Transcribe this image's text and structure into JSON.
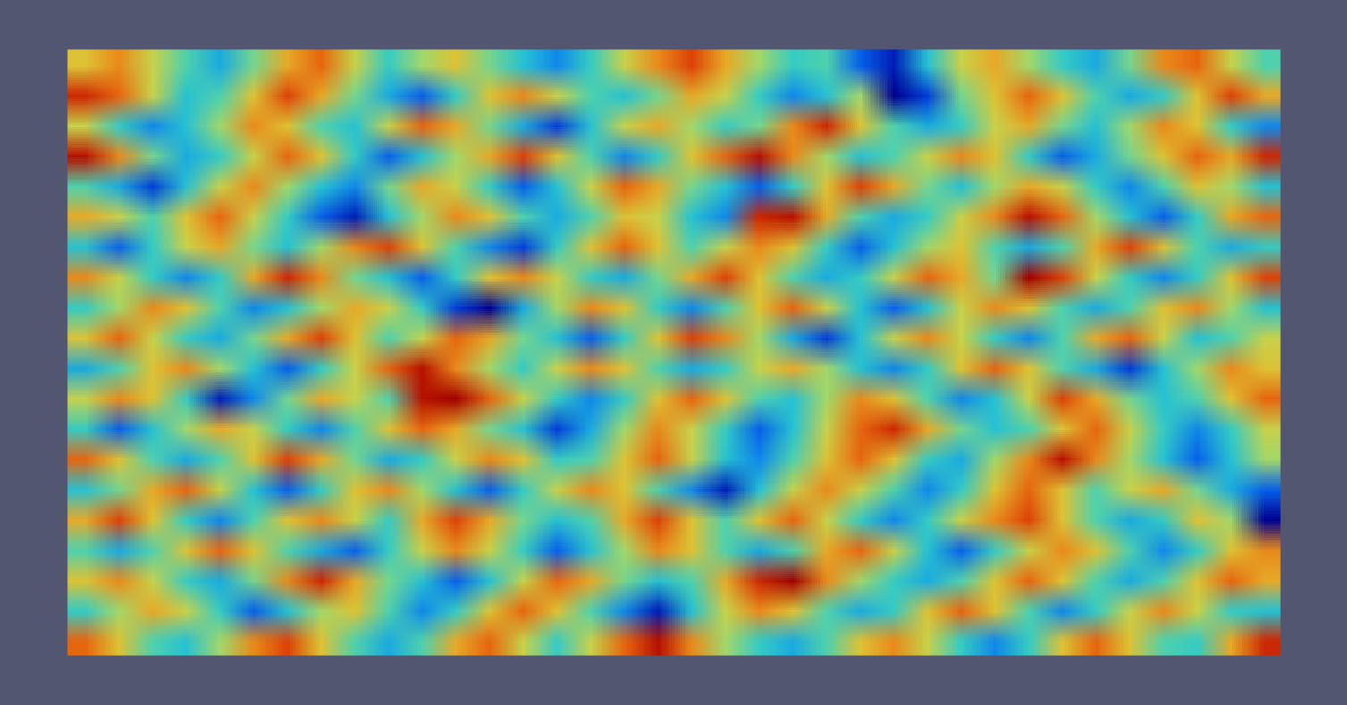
{
  "chart_data": {
    "type": "heatmap",
    "tick_labels": false,
    "cells": [
      [
        3,
        5,
        2,
        -1,
        -4,
        0,
        4,
        6,
        2,
        -2,
        1,
        3,
        0,
        -3,
        -5,
        -2,
        2,
        5,
        7,
        4,
        1,
        -2,
        -1,
        -6,
        -8,
        -3,
        2,
        4,
        1,
        -2,
        -4,
        0,
        5,
        6,
        2,
        -1
      ],
      [
        8,
        6,
        2,
        -3,
        -1,
        3,
        7,
        4,
        0,
        -4,
        -6,
        -2,
        3,
        5,
        2,
        -1,
        -3,
        0,
        4,
        2,
        -2,
        -5,
        -3,
        1,
        -9,
        -7,
        0,
        3,
        6,
        3,
        -1,
        -4,
        -2,
        3,
        7,
        4
      ],
      [
        2,
        -2,
        -5,
        -3,
        1,
        5,
        3,
        -1,
        -3,
        2,
        6,
        4,
        0,
        -4,
        -7,
        -3,
        2,
        4,
        1,
        -2,
        0,
        5,
        8,
        3,
        -1,
        -4,
        -2,
        2,
        4,
        0,
        -3,
        1,
        5,
        3,
        -2,
        -5
      ],
      [
        9,
        5,
        0,
        -4,
        -2,
        2,
        6,
        3,
        -2,
        -6,
        -3,
        1,
        4,
        7,
        3,
        -1,
        -5,
        -2,
        3,
        6,
        9,
        5,
        1,
        -3,
        -1,
        2,
        5,
        3,
        -2,
        -6,
        -4,
        0,
        3,
        6,
        4,
        8
      ],
      [
        -1,
        -4,
        -7,
        -3,
        2,
        5,
        1,
        -3,
        -5,
        0,
        4,
        2,
        -2,
        -6,
        -3,
        2,
        6,
        4,
        0,
        -3,
        -6,
        -2,
        3,
        7,
        4,
        0,
        -3,
        1,
        4,
        2,
        -2,
        -5,
        -1,
        3,
        1,
        -3
      ],
      [
        4,
        2,
        -1,
        3,
        6,
        2,
        -2,
        -6,
        -8,
        -3,
        1,
        5,
        3,
        -1,
        -4,
        -1,
        3,
        2,
        -3,
        -5,
        8,
        9,
        4,
        -1,
        -4,
        -2,
        2,
        5,
        9,
        6,
        1,
        -3,
        -6,
        -2,
        4,
        6
      ],
      [
        -3,
        -6,
        -2,
        2,
        4,
        0,
        -3,
        1,
        5,
        7,
        3,
        -1,
        -5,
        -7,
        -2,
        3,
        6,
        3,
        -1,
        2,
        5,
        3,
        -2,
        -6,
        -3,
        1,
        3,
        -1,
        -4,
        -1,
        4,
        7,
        3,
        -1,
        -4,
        -2
      ],
      [
        5,
        2,
        -2,
        -5,
        -2,
        4,
        8,
        5,
        0,
        -3,
        -6,
        -2,
        3,
        5,
        2,
        -2,
        -4,
        0,
        4,
        7,
        3,
        -1,
        -4,
        -2,
        2,
        6,
        4,
        0,
        10,
        7,
        2,
        -2,
        -5,
        -2,
        3,
        7
      ],
      [
        -2,
        1,
        5,
        3,
        -1,
        -5,
        -3,
        1,
        4,
        2,
        -2,
        -7,
        -9,
        -4,
        1,
        5,
        3,
        -2,
        -5,
        -1,
        3,
        6,
        2,
        -3,
        -6,
        -3,
        2,
        5,
        3,
        -1,
        -4,
        -1,
        3,
        5,
        1,
        -3
      ],
      [
        3,
        6,
        2,
        -2,
        -4,
        0,
        4,
        7,
        3,
        -1,
        2,
        6,
        4,
        0,
        -3,
        -6,
        -2,
        3,
        7,
        5,
        1,
        -4,
        -7,
        -3,
        2,
        5,
        2,
        -2,
        -5,
        -1,
        4,
        6,
        2,
        -3,
        -1,
        2
      ],
      [
        -4,
        -1,
        3,
        5,
        1,
        -3,
        -6,
        -2,
        2,
        6,
        9,
        5,
        1,
        -2,
        2,
        5,
        3,
        -1,
        -4,
        -2,
        2,
        4,
        1,
        -3,
        -5,
        -2,
        3,
        6,
        3,
        -1,
        -4,
        -7,
        -3,
        1,
        5,
        3
      ],
      [
        2,
        5,
        3,
        -2,
        -8,
        -5,
        0,
        4,
        2,
        -1,
        9,
        10,
        6,
        2,
        -2,
        -5,
        -2,
        3,
        6,
        3,
        -1,
        -3,
        1,
        5,
        3,
        -1,
        -5,
        -3,
        2,
        7,
        4,
        0,
        -3,
        -1,
        3,
        6
      ],
      [
        -2,
        -6,
        -3,
        1,
        4,
        2,
        -2,
        -5,
        -1,
        3,
        6,
        4,
        0,
        -3,
        -7,
        -4,
        1,
        5,
        2,
        -2,
        -6,
        -3,
        2,
        6,
        8,
        4,
        0,
        -3,
        -1,
        3,
        6,
        2,
        -2,
        -5,
        -2,
        2
      ],
      [
        6,
        3,
        -1,
        -4,
        -1,
        3,
        7,
        4,
        0,
        -4,
        -2,
        2,
        5,
        3,
        -2,
        -1,
        3,
        6,
        2,
        -3,
        -5,
        -1,
        3,
        6,
        3,
        -2,
        -4,
        1,
        5,
        9,
        5,
        1,
        -3,
        -6,
        -3,
        1
      ],
      [
        -3,
        0,
        4,
        6,
        2,
        -3,
        -6,
        -2,
        3,
        5,
        1,
        -3,
        -6,
        -2,
        2,
        5,
        3,
        -1,
        -5,
        -8,
        -3,
        2,
        5,
        2,
        -1,
        -5,
        -2,
        3,
        6,
        3,
        -1,
        2,
        4,
        0,
        -4,
        -6
      ],
      [
        4,
        7,
        3,
        -2,
        -5,
        -1,
        3,
        5,
        2,
        -2,
        4,
        7,
        4,
        0,
        -3,
        -1,
        4,
        7,
        3,
        -1,
        3,
        6,
        2,
        -2,
        -5,
        -2,
        2,
        5,
        7,
        3,
        -1,
        -4,
        -2,
        3,
        1,
        -9
      ],
      [
        -1,
        -4,
        -1,
        3,
        6,
        3,
        -1,
        -4,
        -6,
        -2,
        2,
        5,
        2,
        -2,
        -6,
        -3,
        1,
        5,
        3,
        -1,
        -4,
        -1,
        4,
        6,
        2,
        -3,
        -6,
        -2,
        2,
        5,
        3,
        -1,
        -5,
        -2,
        3,
        5
      ],
      [
        3,
        5,
        2,
        -2,
        -4,
        0,
        5,
        8,
        4,
        0,
        -3,
        -6,
        -3,
        2,
        6,
        4,
        0,
        -3,
        -1,
        4,
        8,
        10,
        5,
        1,
        -2,
        -4,
        -1,
        3,
        6,
        3,
        -1,
        -4,
        -1,
        3,
        6,
        4
      ],
      [
        -2,
        1,
        4,
        2,
        -2,
        -6,
        -3,
        1,
        3,
        -1,
        -5,
        -2,
        3,
        6,
        3,
        -1,
        -5,
        -8,
        -3,
        2,
        5,
        3,
        -1,
        -4,
        -2,
        3,
        6,
        3,
        -1,
        -5,
        -2,
        2,
        5,
        2,
        -2,
        -3
      ],
      [
        6,
        3,
        -1,
        -3,
        1,
        5,
        7,
        3,
        -1,
        -4,
        -1,
        4,
        6,
        2,
        -2,
        2,
        6,
        9,
        5,
        1,
        -2,
        -4,
        -1,
        3,
        5,
        2,
        -2,
        -5,
        -2,
        3,
        6,
        3,
        -1,
        -2,
        4,
        8
      ]
    ]
  }
}
